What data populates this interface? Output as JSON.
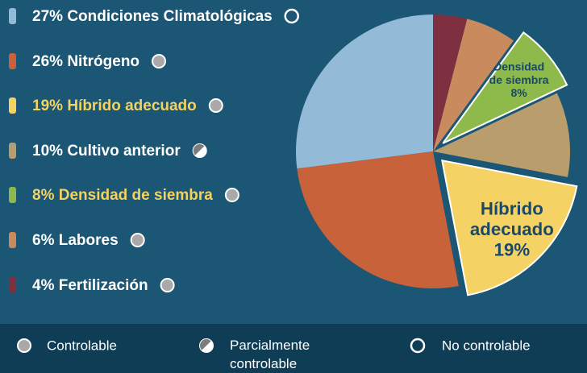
{
  "chart_data": {
    "type": "pie",
    "categories": [
      "Condiciones Climatológicas",
      "Nitrógeno",
      "Híbrido adecuado",
      "Cultivo anterior",
      "Densidad de siembra",
      "Labores",
      "Fertilización"
    ],
    "values": [
      27,
      26,
      19,
      10,
      8,
      6,
      4
    ],
    "value_labels": [
      "27%",
      "26%",
      "19%",
      "10%",
      "8%",
      "6%",
      "4%"
    ],
    "colors": [
      "#93bad6",
      "#c8623a",
      "#f5d264",
      "#b99d6c",
      "#8dba4b",
      "#c98b5d",
      "#7e3040"
    ],
    "highlight": [
      false,
      false,
      true,
      false,
      true,
      false,
      false
    ],
    "control": [
      "No controlable",
      "Controlable",
      "Controlable",
      "Parcialmente controlable",
      "Controlable",
      "Controlable",
      "Controlable"
    ],
    "control_types": [
      "Controlable",
      "Parcialmente controlable",
      "No controlable"
    ]
  }
}
